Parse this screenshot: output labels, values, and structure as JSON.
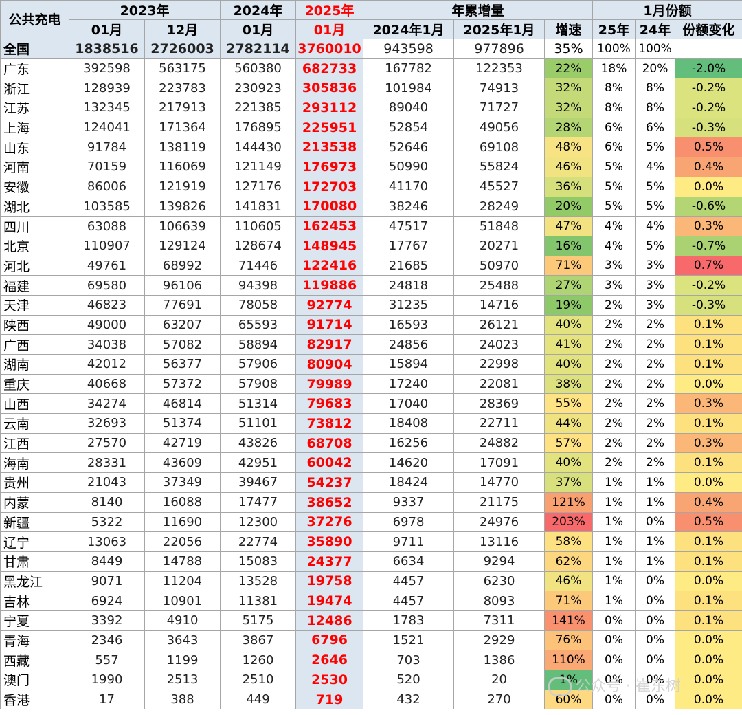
{
  "header": {
    "corner": "公共充电",
    "year_2023": "2023年",
    "year_2024": "2024年",
    "year_2025": "2025年",
    "ytd_group": "年累增量",
    "share_group": "1月份额",
    "col_2023_01": "01月",
    "col_2023_12": "12月",
    "col_2024_01": "01月",
    "col_2025_01": "01月",
    "col_ytd_2024": "2024年1月",
    "col_ytd_2025": "2025年1月",
    "col_growth": "增速",
    "col_share_25": "25年",
    "col_share_24": "24年",
    "col_share_change": "份额变化"
  },
  "total": {
    "name": "全国",
    "v2301": "1838516",
    "v2312": "2726003",
    "v2401": "2782114",
    "v2501": "3760010",
    "ytd24": "943598",
    "ytd25": "977896",
    "growth": "35%",
    "s25": "100%",
    "s24": "100%",
    "delta": ""
  },
  "rows": [
    {
      "name": "广东",
      "v2301": "392598",
      "v2312": "563175",
      "v2401": "560380",
      "v2501": "682733",
      "ytd24": "167782",
      "ytd25": "122353",
      "growth": "22%",
      "growth_color": "#9acd6a",
      "s25": "18%",
      "s24": "20%",
      "delta": "-2.0%",
      "delta_color": "#63be7b"
    },
    {
      "name": "浙江",
      "v2301": "128939",
      "v2312": "223783",
      "v2401": "230923",
      "v2501": "305836",
      "ytd24": "101984",
      "ytd25": "74913",
      "growth": "32%",
      "growth_color": "#c4da78",
      "s25": "8%",
      "s24": "8%",
      "delta": "-0.2%",
      "delta_color": "#dbe37e"
    },
    {
      "name": "江苏",
      "v2301": "132345",
      "v2312": "217913",
      "v2401": "221385",
      "v2501": "293112",
      "ytd24": "89040",
      "ytd25": "71727",
      "growth": "32%",
      "growth_color": "#c4da78",
      "s25": "8%",
      "s24": "8%",
      "delta": "-0.2%",
      "delta_color": "#dbe37e"
    },
    {
      "name": "上海",
      "v2301": "124041",
      "v2312": "171364",
      "v2401": "176895",
      "v2501": "225951",
      "ytd24": "52854",
      "ytd25": "49056",
      "growth": "28%",
      "growth_color": "#b3d574",
      "s25": "6%",
      "s24": "6%",
      "delta": "-0.3%",
      "delta_color": "#d6e17d"
    },
    {
      "name": "山东",
      "v2301": "91784",
      "v2312": "138119",
      "v2401": "144430",
      "v2501": "213538",
      "ytd24": "52646",
      "ytd25": "69108",
      "growth": "48%",
      "growth_color": "#f7e383",
      "s25": "6%",
      "s24": "5%",
      "delta": "0.5%",
      "delta_color": "#f8906f"
    },
    {
      "name": "河南",
      "v2301": "70159",
      "v2312": "116069",
      "v2401": "121149",
      "v2501": "176973",
      "ytd24": "50990",
      "ytd25": "55824",
      "growth": "46%",
      "growth_color": "#f1e282",
      "s25": "5%",
      "s24": "4%",
      "delta": "0.4%",
      "delta_color": "#f9a573"
    },
    {
      "name": "安徽",
      "v2301": "86006",
      "v2312": "121919",
      "v2401": "127176",
      "v2501": "172703",
      "ytd24": "41170",
      "ytd25": "45527",
      "growth": "36%",
      "growth_color": "#d5df7c",
      "s25": "5%",
      "s24": "5%",
      "delta": "0.0%",
      "delta_color": "#ffeb84"
    },
    {
      "name": "湖北",
      "v2301": "103585",
      "v2312": "139826",
      "v2401": "141831",
      "v2501": "170080",
      "ytd24": "38246",
      "ytd25": "28249",
      "growth": "20%",
      "growth_color": "#92ca68",
      "s25": "5%",
      "s24": "5%",
      "delta": "-0.6%",
      "delta_color": "#b3d574"
    },
    {
      "name": "四川",
      "v2301": "63088",
      "v2312": "106639",
      "v2401": "110605",
      "v2501": "162453",
      "ytd24": "47517",
      "ytd25": "51848",
      "growth": "47%",
      "growth_color": "#f3e282",
      "s25": "4%",
      "s24": "4%",
      "delta": "0.3%",
      "delta_color": "#fbb777"
    },
    {
      "name": "北京",
      "v2301": "110907",
      "v2312": "129124",
      "v2401": "128674",
      "v2501": "148945",
      "ytd24": "17767",
      "ytd25": "20271",
      "growth": "16%",
      "growth_color": "#82c56c",
      "s25": "4%",
      "s24": "5%",
      "delta": "-0.7%",
      "delta_color": "#aad272"
    },
    {
      "name": "河北",
      "v2301": "49761",
      "v2312": "68992",
      "v2401": "71446",
      "v2501": "122416",
      "ytd24": "21685",
      "ytd25": "50970",
      "growth": "71%",
      "growth_color": "#fcc97b",
      "s25": "3%",
      "s24": "3%",
      "delta": "0.7%",
      "delta_color": "#f8696b"
    },
    {
      "name": "福建",
      "v2301": "69580",
      "v2312": "96106",
      "v2401": "94398",
      "v2501": "119886",
      "ytd24": "24818",
      "ytd25": "25488",
      "growth": "27%",
      "growth_color": "#aed473",
      "s25": "3%",
      "s24": "3%",
      "delta": "-0.2%",
      "delta_color": "#dbe37e"
    },
    {
      "name": "天津",
      "v2301": "46823",
      "v2312": "77691",
      "v2401": "78058",
      "v2501": "92774",
      "ytd24": "31235",
      "ytd25": "14716",
      "growth": "19%",
      "growth_color": "#8ec969",
      "s25": "2%",
      "s24": "3%",
      "delta": "-0.3%",
      "delta_color": "#d6e17d"
    },
    {
      "name": "陕西",
      "v2301": "49000",
      "v2312": "63207",
      "v2401": "65593",
      "v2501": "91714",
      "ytd24": "16593",
      "ytd25": "26121",
      "growth": "40%",
      "growth_color": "#e2e27f",
      "s25": "2%",
      "s24": "2%",
      "delta": "0.1%",
      "delta_color": "#fee17f"
    },
    {
      "name": "广西",
      "v2301": "34038",
      "v2312": "57082",
      "v2401": "58894",
      "v2501": "82917",
      "ytd24": "24856",
      "ytd25": "24023",
      "growth": "41%",
      "growth_color": "#e5e380",
      "s25": "2%",
      "s24": "2%",
      "delta": "0.1%",
      "delta_color": "#fee17f"
    },
    {
      "name": "湖南",
      "v2301": "42012",
      "v2312": "56377",
      "v2401": "57906",
      "v2501": "80904",
      "ytd24": "15894",
      "ytd25": "22998",
      "growth": "40%",
      "growth_color": "#e2e27f",
      "s25": "2%",
      "s24": "2%",
      "delta": "0.1%",
      "delta_color": "#fee17f"
    },
    {
      "name": "重庆",
      "v2301": "40668",
      "v2312": "57372",
      "v2401": "57908",
      "v2501": "79989",
      "ytd24": "17240",
      "ytd25": "22081",
      "growth": "38%",
      "growth_color": "#dce07e",
      "s25": "2%",
      "s24": "2%",
      "delta": "0.0%",
      "delta_color": "#ffeb84"
    },
    {
      "name": "山西",
      "v2301": "34274",
      "v2312": "46814",
      "v2401": "51314",
      "v2501": "79683",
      "ytd24": "17040",
      "ytd25": "28369",
      "growth": "55%",
      "growth_color": "#fde383",
      "s25": "2%",
      "s24": "2%",
      "delta": "0.3%",
      "delta_color": "#fbb777"
    },
    {
      "name": "云南",
      "v2301": "32693",
      "v2312": "51374",
      "v2401": "51101",
      "v2501": "73812",
      "ytd24": "18408",
      "ytd25": "22711",
      "growth": "44%",
      "growth_color": "#eee281",
      "s25": "2%",
      "s24": "2%",
      "delta": "0.1%",
      "delta_color": "#fee17f"
    },
    {
      "name": "江西",
      "v2301": "27570",
      "v2312": "42719",
      "v2401": "43826",
      "v2501": "68708",
      "ytd24": "16256",
      "ytd25": "24882",
      "growth": "57%",
      "growth_color": "#fde182",
      "s25": "2%",
      "s24": "2%",
      "delta": "0.3%",
      "delta_color": "#fbb777"
    },
    {
      "name": "海南",
      "v2301": "28331",
      "v2312": "43609",
      "v2401": "42951",
      "v2501": "60042",
      "ytd24": "14620",
      "ytd25": "17091",
      "growth": "40%",
      "growth_color": "#e2e27f",
      "s25": "2%",
      "s24": "2%",
      "delta": "0.1%",
      "delta_color": "#fee17f"
    },
    {
      "name": "贵州",
      "v2301": "21043",
      "v2312": "37349",
      "v2401": "39467",
      "v2501": "54237",
      "ytd24": "18424",
      "ytd25": "14770",
      "growth": "37%",
      "growth_color": "#d8df7d",
      "s25": "1%",
      "s24": "1%",
      "delta": "0.0%",
      "delta_color": "#ffeb84"
    },
    {
      "name": "内蒙",
      "v2301": "8140",
      "v2312": "16088",
      "v2401": "17477",
      "v2501": "38652",
      "ytd24": "9337",
      "ytd25": "21175",
      "growth": "121%",
      "growth_color": "#f8a070",
      "s25": "1%",
      "s24": "1%",
      "delta": "0.4%",
      "delta_color": "#f9a573"
    },
    {
      "name": "新疆",
      "v2301": "5322",
      "v2312": "11690",
      "v2401": "12300",
      "v2501": "37276",
      "ytd24": "6978",
      "ytd25": "24976",
      "growth": "203%",
      "growth_color": "#f8696b",
      "s25": "1%",
      "s24": "0%",
      "delta": "0.5%",
      "delta_color": "#f8906f"
    },
    {
      "name": "辽宁",
      "v2301": "13063",
      "v2312": "22056",
      "v2401": "22774",
      "v2501": "35890",
      "ytd24": "9711",
      "ytd25": "13116",
      "growth": "58%",
      "growth_color": "#fde082",
      "s25": "1%",
      "s24": "1%",
      "delta": "0.1%",
      "delta_color": "#fee17f"
    },
    {
      "name": "甘肃",
      "v2301": "8449",
      "v2312": "14788",
      "v2401": "15083",
      "v2501": "24377",
      "ytd24": "6634",
      "ytd25": "9294",
      "growth": "62%",
      "growth_color": "#fdd680",
      "s25": "1%",
      "s24": "1%",
      "delta": "0.1%",
      "delta_color": "#fee17f"
    },
    {
      "name": "黑龙江",
      "v2301": "9071",
      "v2312": "11204",
      "v2401": "13528",
      "v2501": "19758",
      "ytd24": "4457",
      "ytd25": "6230",
      "growth": "46%",
      "growth_color": "#f1e282",
      "s25": "1%",
      "s24": "0%",
      "delta": "0.0%",
      "delta_color": "#ffeb84"
    },
    {
      "name": "吉林",
      "v2301": "6924",
      "v2312": "10901",
      "v2401": "11381",
      "v2501": "19474",
      "ytd24": "4457",
      "ytd25": "8093",
      "growth": "71%",
      "growth_color": "#fcc97b",
      "s25": "1%",
      "s24": "0%",
      "delta": "0.1%",
      "delta_color": "#fee17f"
    },
    {
      "name": "宁夏",
      "v2301": "3392",
      "v2312": "4910",
      "v2401": "5175",
      "v2501": "12486",
      "ytd24": "1783",
      "ytd25": "7311",
      "growth": "141%",
      "growth_color": "#f9906e",
      "s25": "0%",
      "s24": "0%",
      "delta": "0.1%",
      "delta_color": "#fee17f"
    },
    {
      "name": "青海",
      "v2301": "2346",
      "v2312": "3643",
      "v2401": "3867",
      "v2501": "6796",
      "ytd24": "1521",
      "ytd25": "2929",
      "growth": "76%",
      "growth_color": "#fcc27a",
      "s25": "0%",
      "s24": "0%",
      "delta": "0.0%",
      "delta_color": "#ffeb84"
    },
    {
      "name": "西藏",
      "v2301": "557",
      "v2312": "1199",
      "v2401": "1260",
      "v2501": "2646",
      "ytd24": "703",
      "ytd25": "1386",
      "growth": "110%",
      "growth_color": "#faa874",
      "s25": "0%",
      "s24": "0%",
      "delta": "0.0%",
      "delta_color": "#ffeb84"
    },
    {
      "name": "澳门",
      "v2301": "1990",
      "v2312": "2513",
      "v2401": "2510",
      "v2501": "2530",
      "ytd24": "520",
      "ytd25": "20",
      "growth": "1%",
      "growth_color": "#63be7b",
      "s25": "0%",
      "s24": "0%",
      "delta": "0.0%",
      "delta_color": "#ffeb84"
    },
    {
      "name": "香港",
      "v2301": "17",
      "v2312": "388",
      "v2401": "449",
      "v2501": "719",
      "ytd24": "432",
      "ytd25": "270",
      "growth": "60%",
      "growth_color": "#fdda81",
      "s25": "0%",
      "s24": "0%",
      "delta": "0.0%",
      "delta_color": "#ffeb84"
    }
  ],
  "watermark": "公众号 · 崔东树"
}
